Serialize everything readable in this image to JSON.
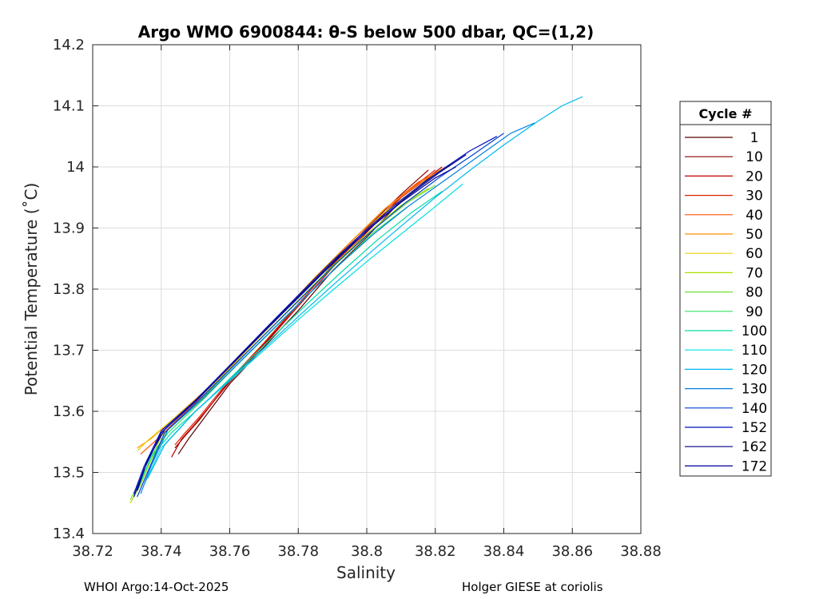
{
  "footer": {
    "left": "WHOI Argo:14-Oct-2025",
    "right": "Holger GIESE at coriolis"
  },
  "chart_data": {
    "type": "line",
    "title": "Argo WMO 6900844: θ-S below 500 dbar,  QC=(1,2)",
    "xlabel": "Salinity",
    "ylabel": "Potential Temperature (˚C)",
    "xlim": [
      38.72,
      38.88
    ],
    "ylim": [
      13.4,
      14.2
    ],
    "xticks": [
      38.72,
      38.74,
      38.76,
      38.78,
      38.8,
      38.82,
      38.84,
      38.86,
      38.88
    ],
    "xtick_labels": [
      "38.72",
      "38.74",
      "38.76",
      "38.78",
      "38.8",
      "38.82",
      "38.84",
      "38.86",
      "38.88"
    ],
    "yticks": [
      13.4,
      13.5,
      13.6,
      13.7,
      13.8,
      13.9,
      14.0,
      14.1,
      14.2
    ],
    "ytick_labels": [
      "13.4",
      "13.5",
      "13.6",
      "13.7",
      "13.8",
      "13.9",
      "14",
      "14.1",
      "14.2"
    ],
    "grid": true,
    "legend": {
      "title": "Cycle #",
      "placement": "right"
    },
    "series": [
      {
        "name": "1",
        "color": "#5a0000",
        "x": [
          38.745,
          38.748,
          38.752,
          38.76,
          38.77,
          38.78,
          38.79,
          38.8,
          38.81,
          38.82
        ],
        "y": [
          13.53,
          13.555,
          13.585,
          13.645,
          13.705,
          13.765,
          13.83,
          13.885,
          13.945,
          13.99
        ]
      },
      {
        "name": "10",
        "color": "#8b0000",
        "x": [
          38.744,
          38.747,
          38.751,
          38.76,
          38.77,
          38.78,
          38.79,
          38.8,
          38.81,
          38.818
        ],
        "y": [
          13.54,
          13.56,
          13.585,
          13.65,
          13.71,
          13.775,
          13.84,
          13.9,
          13.955,
          13.995
        ]
      },
      {
        "name": "20",
        "color": "#c00000",
        "x": [
          38.743,
          38.746,
          38.75,
          38.76,
          38.77,
          38.78,
          38.79,
          38.8,
          38.81,
          38.822
        ],
        "y": [
          13.525,
          13.555,
          13.58,
          13.648,
          13.708,
          13.772,
          13.835,
          13.893,
          13.95,
          14.0
        ]
      },
      {
        "name": "30",
        "color": "#e02000",
        "x": [
          38.744,
          38.747,
          38.751,
          38.76,
          38.77,
          38.78,
          38.79,
          38.8,
          38.81,
          38.82
        ],
        "y": [
          13.545,
          13.565,
          13.59,
          13.652,
          13.712,
          13.776,
          13.838,
          13.896,
          13.952,
          13.995
        ]
      },
      {
        "name": "40",
        "color": "#ff5000",
        "x": [
          38.734,
          38.738,
          38.745,
          38.755,
          38.765,
          38.775,
          38.785,
          38.795,
          38.805,
          38.815,
          38.825
        ],
        "y": [
          13.53,
          13.55,
          13.588,
          13.64,
          13.7,
          13.758,
          13.818,
          13.875,
          13.93,
          13.975,
          14.005
        ]
      },
      {
        "name": "50",
        "color": "#ff9000",
        "x": [
          38.733,
          38.737,
          38.744,
          38.755,
          38.765,
          38.775,
          38.785,
          38.795,
          38.805,
          38.815,
          38.823
        ],
        "y": [
          13.54,
          13.555,
          13.59,
          13.645,
          13.702,
          13.76,
          13.82,
          13.876,
          13.93,
          13.972,
          14.0
        ]
      },
      {
        "name": "60",
        "color": "#f0d000",
        "x": [
          38.733,
          38.736,
          38.743,
          38.755,
          38.765,
          38.775,
          38.785,
          38.795,
          38.805,
          38.815
        ],
        "y": [
          13.535,
          13.552,
          13.585,
          13.642,
          13.7,
          13.758,
          13.816,
          13.872,
          13.925,
          13.965
        ]
      },
      {
        "name": "70",
        "color": "#b0e000",
        "x": [
          38.731,
          38.734,
          38.74,
          38.75,
          38.76,
          38.77,
          38.78,
          38.79,
          38.8,
          38.81,
          38.818
        ],
        "y": [
          13.45,
          13.48,
          13.56,
          13.61,
          13.668,
          13.725,
          13.782,
          13.838,
          13.89,
          13.937,
          13.965
        ]
      },
      {
        "name": "80",
        "color": "#70e030",
        "x": [
          38.731,
          38.735,
          38.742,
          38.752,
          38.762,
          38.772,
          38.782,
          38.792,
          38.802,
          38.812,
          38.82
        ],
        "y": [
          13.455,
          13.5,
          13.57,
          13.622,
          13.68,
          13.736,
          13.792,
          13.846,
          13.898,
          13.942,
          13.97
        ]
      },
      {
        "name": "90",
        "color": "#30e060",
        "x": [
          38.732,
          38.736,
          38.742,
          38.752,
          38.762,
          38.772,
          38.782,
          38.792,
          38.802,
          38.812
        ],
        "y": [
          13.46,
          13.52,
          13.565,
          13.618,
          13.675,
          13.73,
          13.786,
          13.84,
          13.893,
          13.935
        ]
      },
      {
        "name": "100",
        "color": "#00e0a0",
        "x": [
          38.733,
          38.737,
          38.743,
          38.753,
          38.763,
          38.773,
          38.783,
          38.793,
          38.803,
          38.813,
          38.822
        ],
        "y": [
          13.47,
          13.525,
          13.565,
          13.615,
          13.67,
          13.724,
          13.778,
          13.83,
          13.88,
          13.925,
          13.96
        ]
      },
      {
        "name": "110",
        "color": "#00e0e0",
        "x": [
          38.735,
          38.74,
          38.75,
          38.76,
          38.77,
          38.78,
          38.79,
          38.8,
          38.81,
          38.82,
          38.828
        ],
        "y": [
          13.48,
          13.54,
          13.6,
          13.65,
          13.7,
          13.75,
          13.798,
          13.845,
          13.89,
          13.935,
          13.972
        ]
      },
      {
        "name": "120",
        "color": "#00b8f0",
        "x": [
          38.736,
          38.741,
          38.75,
          38.76,
          38.77,
          38.78,
          38.79,
          38.8,
          38.81,
          38.82,
          38.83,
          38.84,
          38.85,
          38.857,
          38.863
        ],
        "y": [
          13.49,
          13.545,
          13.6,
          13.652,
          13.703,
          13.755,
          13.806,
          13.855,
          13.903,
          13.95,
          13.994,
          14.036,
          14.075,
          14.1,
          14.115
        ]
      },
      {
        "name": "130",
        "color": "#0080e0",
        "x": [
          38.734,
          38.737,
          38.742,
          38.752,
          38.762,
          38.772,
          38.782,
          38.792,
          38.802,
          38.812,
          38.822,
          38.832,
          38.842,
          38.849
        ],
        "y": [
          13.465,
          13.51,
          13.57,
          13.62,
          13.676,
          13.731,
          13.786,
          13.84,
          13.89,
          13.935,
          13.975,
          14.015,
          14.055,
          14.072
        ]
      },
      {
        "name": "140",
        "color": "#0040d0",
        "x": [
          38.733,
          38.736,
          38.741,
          38.751,
          38.761,
          38.771,
          38.781,
          38.791,
          38.801,
          38.811,
          38.821,
          38.831,
          38.84
        ],
        "y": [
          13.46,
          13.5,
          13.565,
          13.618,
          13.674,
          13.73,
          13.786,
          13.842,
          13.893,
          13.94,
          13.982,
          14.02,
          14.055
        ]
      },
      {
        "name": "152",
        "color": "#0010c0",
        "x": [
          38.732,
          38.735,
          38.74,
          38.75,
          38.76,
          38.77,
          38.78,
          38.79,
          38.8,
          38.81,
          38.82,
          38.83,
          38.838
        ],
        "y": [
          13.465,
          13.51,
          13.568,
          13.618,
          13.675,
          13.733,
          13.79,
          13.846,
          13.898,
          13.946,
          13.988,
          14.026,
          14.05
        ]
      },
      {
        "name": "162",
        "color": "#000080",
        "x": [
          38.733,
          38.736,
          38.741,
          38.751,
          38.761,
          38.771,
          38.781,
          38.791,
          38.801,
          38.811,
          38.821,
          38.829
        ],
        "y": [
          13.47,
          13.52,
          13.57,
          13.622,
          13.68,
          13.737,
          13.793,
          13.849,
          13.9,
          13.948,
          13.99,
          14.02
        ]
      },
      {
        "name": "172",
        "color": "#0000a0",
        "x": [
          38.732,
          38.735,
          38.74,
          38.75,
          38.76,
          38.77,
          38.78,
          38.79,
          38.8,
          38.81,
          38.82,
          38.826
        ],
        "y": [
          13.46,
          13.505,
          13.565,
          13.616,
          13.673,
          13.73,
          13.786,
          13.842,
          13.895,
          13.942,
          13.982,
          14.0
        ]
      }
    ]
  }
}
